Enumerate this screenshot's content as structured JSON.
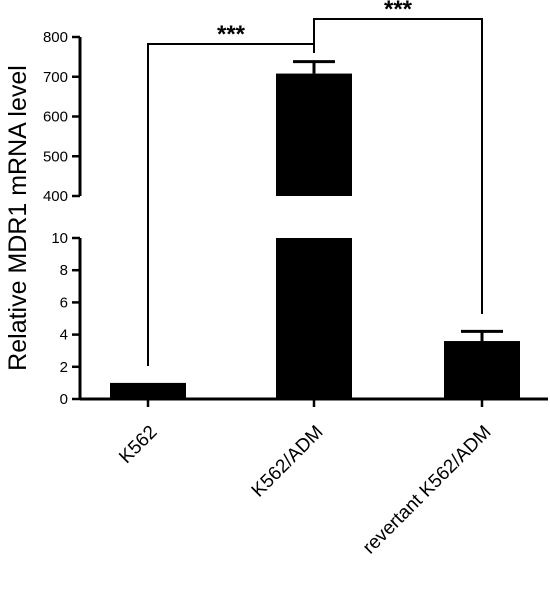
{
  "chart_data": {
    "type": "bar",
    "title": "",
    "xlabel": "",
    "ylabel": "Relative MDR1 mRNA level",
    "categories": [
      "K562",
      "K562/ADM",
      "revertant K562/ADM"
    ],
    "values": [
      1.0,
      708,
      3.6
    ],
    "error": [
      0,
      30,
      0.6
    ],
    "y_axis_break": {
      "lower_range": [
        0,
        10
      ],
      "upper_range": [
        400,
        800
      ]
    },
    "yticks_lower": [
      "0",
      "2",
      "4",
      "6",
      "8",
      "10"
    ],
    "yticks_upper": [
      "400",
      "500",
      "600",
      "700",
      "800"
    ],
    "significance": [
      {
        "from": "K562",
        "to": "K562/ADM",
        "label": "***"
      },
      {
        "from": "K562/ADM",
        "to": "revertant K562/ADM",
        "label": "***"
      }
    ],
    "grid": false,
    "legend": "none",
    "colors": {
      "bar": "#000000",
      "axis": "#000000"
    }
  }
}
